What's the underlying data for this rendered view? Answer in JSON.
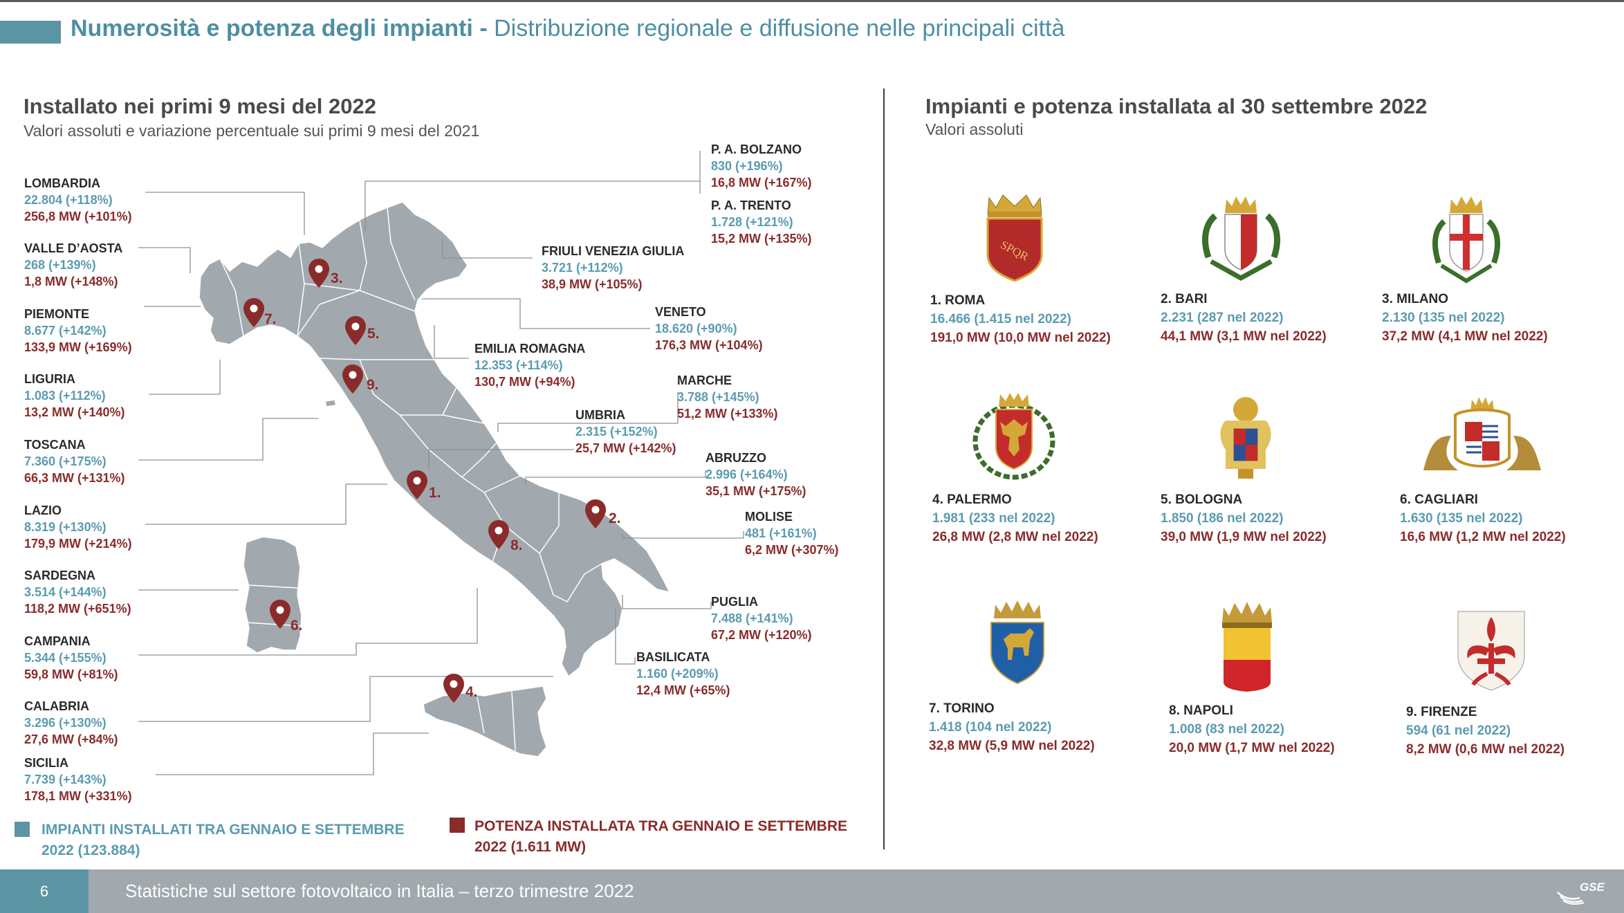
{
  "header": {
    "title": "Numerosità e potenza degli impianti",
    "separator": " - ",
    "subtitle": "Distribuzione regionale e diffusione nelle principali città"
  },
  "left": {
    "title": "Installato nei primi 9 mesi del 2022",
    "subtitle": "Valori assoluti e variazione percentuale sui primi 9 mesi del 2021"
  },
  "right": {
    "title": "Impianti e potenza installata al 30 settembre 2022",
    "subtitle": "Valori assoluti"
  },
  "regions": {
    "lombardia": {
      "name": "LOMBARDIA",
      "count": "22.804 (+118%)",
      "power": "256,8 MW (+101%)"
    },
    "valle_aosta": {
      "name": "VALLE D’AOSTA",
      "count": "268 (+139%)",
      "power": "1,8 MW (+148%)"
    },
    "piemonte": {
      "name": "PIEMONTE",
      "count": "8.677 (+142%)",
      "power": "133,9 MW (+169%)"
    },
    "liguria": {
      "name": "LIGURIA",
      "count": "1.083 (+112%)",
      "power": "13,2 MW (+140%)"
    },
    "toscana": {
      "name": "TOSCANA",
      "count": "7.360 (+175%)",
      "power": "66,3 MW (+131%)"
    },
    "lazio": {
      "name": "LAZIO",
      "count": "8.319 (+130%)",
      "power": "179,9 MW (+214%)"
    },
    "sardegna": {
      "name": "SARDEGNA",
      "count": "3.514 (+144%)",
      "power": "118,2 MW (+651%)"
    },
    "campania": {
      "name": "CAMPANIA",
      "count": "5.344 (+155%)",
      "power": "59,8 MW (+81%)"
    },
    "calabria": {
      "name": "CALABRIA",
      "count": "3.296 (+130%)",
      "power": "27,6 MW (+84%)"
    },
    "sicilia": {
      "name": "SICILIA",
      "count": "7.739 (+143%)",
      "power": "178,1 MW (+331%)"
    },
    "bolzano": {
      "name": "P. A. BOLZANO",
      "count": "830 (+196%)",
      "power": "16,8 MW (+167%)"
    },
    "trento": {
      "name": "P. A. TRENTO",
      "count": "1.728 (+121%)",
      "power": "15,2 MW (+135%)"
    },
    "friuli": {
      "name": "FRIULI VENEZIA GIULIA",
      "count": "3.721 (+112%)",
      "power": "38,9 MW (+105%)"
    },
    "veneto": {
      "name": "VENETO",
      "count": "18.620 (+90%)",
      "power": "176,3 MW (+104%)"
    },
    "emilia": {
      "name": "EMILIA ROMAGNA",
      "count": "12.353 (+114%)",
      "power": "130,7 MW (+94%)"
    },
    "marche": {
      "name": "MARCHE",
      "count": "3.788 (+145%)",
      "power": "51,2 MW (+133%)"
    },
    "umbria": {
      "name": "UMBRIA",
      "count": "2.315 (+152%)",
      "power": "25,7 MW (+142%)"
    },
    "abruzzo": {
      "name": "ABRUZZO",
      "count": "2.996 (+164%)",
      "power": "35,1 MW (+175%)"
    },
    "molise": {
      "name": "MOLISE",
      "count": "481 (+161%)",
      "power": "6,2 MW (+307%)"
    },
    "puglia": {
      "name": "PUGLIA",
      "count": "7.488 (+141%)",
      "power": "67,2 MW (+120%)"
    },
    "basilicata": {
      "name": "BASILICATA",
      "count": "1.160 (+209%)",
      "power": "12,4 MW (+65%)"
    }
  },
  "pins": {
    "p1": "1.",
    "p2": "2.",
    "p3": "3.",
    "p4": "4.",
    "p5": "5.",
    "p6": "6.",
    "p7": "7.",
    "p8": "8.",
    "p9": "9."
  },
  "legend": {
    "count_line1": "IMPIANTI INSTALLATI TRA GENNAIO E SETTEMBRE",
    "count_line2": "2022 (123.884)",
    "power_line1": "POTENZA INSTALLATA TRA GENNAIO E SETTEMBRE",
    "power_line2": "2022 (1.611 MW)"
  },
  "cities": [
    {
      "name": "1. ROMA",
      "count": "16.466 (1.415 nel 2022)",
      "power": "191,0 MW (10,0 MW nel 2022)"
    },
    {
      "name": "2. BARI",
      "count": "2.231 (287 nel 2022)",
      "power": "44,1 MW (3,1 MW nel 2022)"
    },
    {
      "name": "3. MILANO",
      "count": "2.130 (135 nel 2022)",
      "power": "37,2 MW (4,1 MW nel 2022)"
    },
    {
      "name": "4. PALERMO",
      "count": "1.981 (233 nel 2022)",
      "power": "26,8 MW (2,8 MW nel 2022)"
    },
    {
      "name": "5. BOLOGNA",
      "count": "1.850 (186 nel 2022)",
      "power": "39,0 MW (1,9 MW nel 2022)"
    },
    {
      "name": "6. CAGLIARI",
      "count": "1.630 (135 nel 2022)",
      "power": "16,6 MW (1,2 MW nel 2022)"
    },
    {
      "name": "7. TORINO",
      "count": "1.418 (104 nel 2022)",
      "power": "32,8 MW (5,9 MW nel 2022)"
    },
    {
      "name": "8. NAPOLI",
      "count": "1.008 (83 nel 2022)",
      "power": "20,0 MW (1,7 MW nel 2022)"
    },
    {
      "name": "9. FIRENZE",
      "count": "594 (61 nel 2022)",
      "power": "8,2 MW (0,6 MW nel 2022)"
    }
  ],
  "crest_text": {
    "roma": "SPQR"
  },
  "footer": {
    "page": "6",
    "text": "Statistiche sul settore fotovoltaico in Italia – terzo trimestre 2022",
    "logo": "GSE"
  },
  "colors": {
    "teal": "#5b95a4",
    "count_blue": "#5a9bb0",
    "power_red": "#8a2b2b",
    "map_gray": "#a2a9ae",
    "footer_gray": "#a2a9ae"
  }
}
